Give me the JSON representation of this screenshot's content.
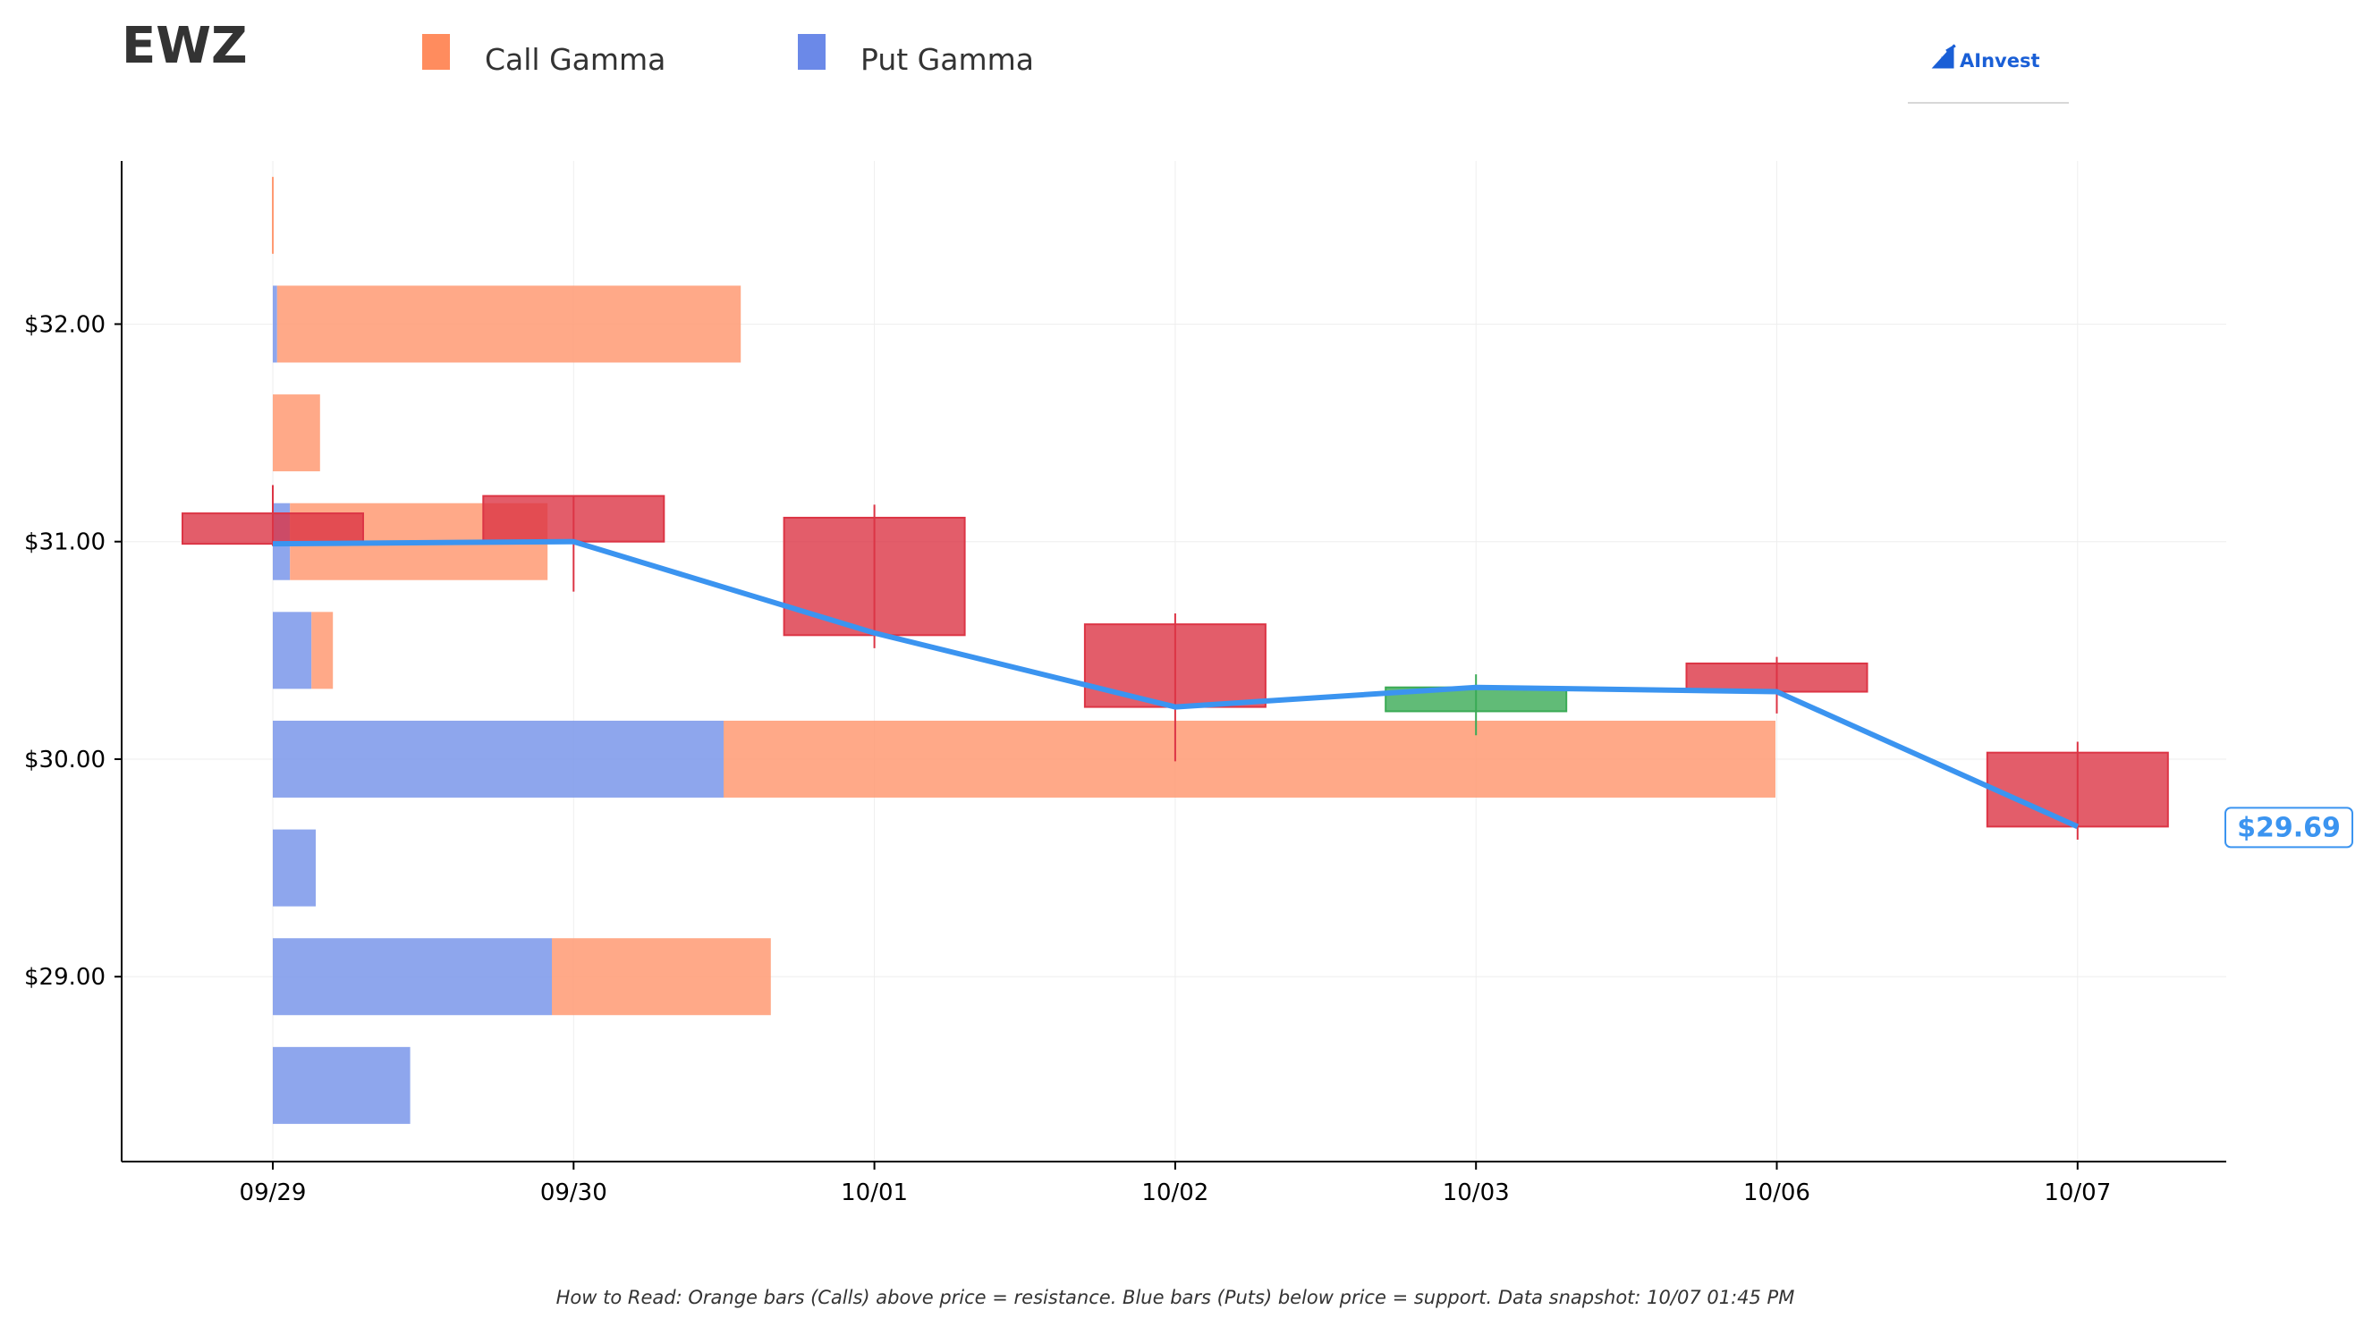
{
  "title": "EWZ",
  "brand": {
    "name": "AInvest",
    "color": "#1a5fd6"
  },
  "legend": [
    {
      "label": "Call Gamma",
      "color": "#ff8c5e"
    },
    {
      "label": "Put Gamma",
      "color": "#6b89e8"
    }
  ],
  "footnote": "How to Read: Orange bars (Calls) above price = resistance. Blue bars (Puts) below price = support. Data snapshot: 10/07 01:45 PM",
  "chart_data": {
    "type": "candlestick",
    "categories": [
      "09/29",
      "09/30",
      "10/01",
      "10/02",
      "10/03",
      "10/06",
      "10/07"
    ],
    "ylim": [
      28.15,
      32.75
    ],
    "yticks": [
      {
        "value": 29,
        "label": "$29.00"
      },
      {
        "value": 30,
        "label": "$30.00"
      },
      {
        "value": 31,
        "label": "$31.00"
      },
      {
        "value": 32,
        "label": "$32.00"
      }
    ],
    "grid": true,
    "candles": [
      {
        "date": "09/29",
        "open": 31.13,
        "close": 30.99,
        "high": 31.26,
        "low": 30.98
      },
      {
        "date": "09/30",
        "open": 31.21,
        "close": 31.0,
        "high": 31.21,
        "low": 30.77
      },
      {
        "date": "10/01",
        "open": 31.11,
        "close": 30.57,
        "high": 31.17,
        "low": 30.51
      },
      {
        "date": "10/02",
        "open": 30.62,
        "close": 30.24,
        "high": 30.67,
        "low": 29.99
      },
      {
        "date": "10/03",
        "open": 30.22,
        "close": 30.33,
        "high": 30.39,
        "low": 30.11
      },
      {
        "date": "10/06",
        "open": 30.44,
        "close": 30.31,
        "high": 30.47,
        "low": 30.21
      },
      {
        "date": "10/07",
        "open": 30.03,
        "close": 29.69,
        "high": 30.08,
        "low": 29.63
      }
    ],
    "close_line": [
      30.99,
      31.0,
      30.58,
      30.24,
      30.33,
      30.31,
      29.69
    ],
    "current_price": {
      "value": 29.69,
      "label": "$29.69"
    },
    "gamma": {
      "strikes": [
        32.5,
        32.0,
        31.5,
        31.0,
        30.5,
        30.0,
        29.5,
        29.0,
        28.5
      ],
      "call": [
        0.0,
        1.08,
        0.11,
        0.6,
        0.05,
        2.45,
        0.0,
        0.51,
        0.0
      ],
      "put": [
        0.0,
        0.01,
        0.0,
        0.04,
        0.09,
        1.05,
        0.1,
        0.65,
        0.32
      ]
    },
    "colors": {
      "up": "#3aaa55",
      "down": "#dc3545",
      "line": "#3b94f0",
      "call": "#ff9a73",
      "put": "#7a96ea"
    }
  }
}
